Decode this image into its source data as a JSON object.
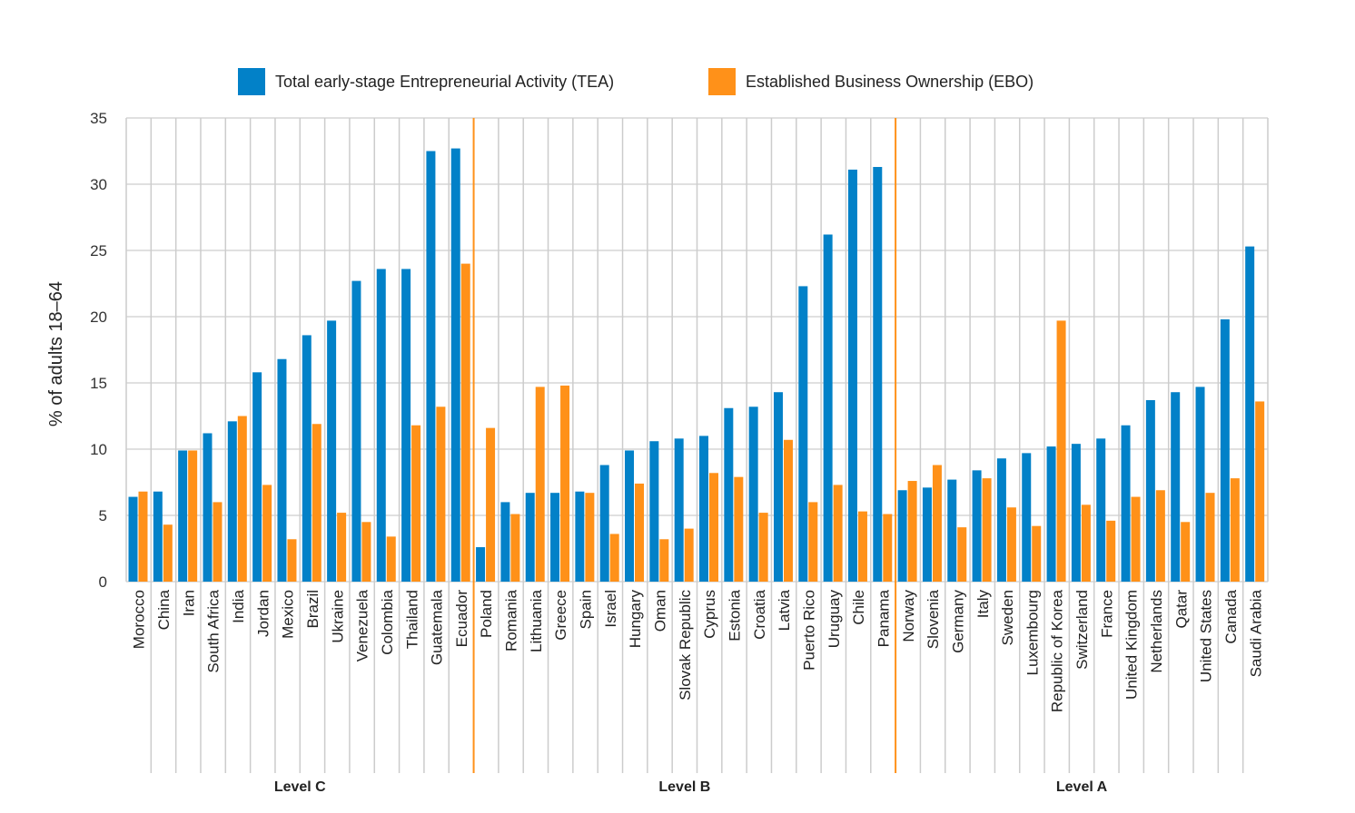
{
  "chart_data": {
    "type": "bar",
    "title": "",
    "xlabel": "",
    "ylabel": "% of adults 18–64",
    "ylim": [
      0,
      35
    ],
    "yticks": [
      0,
      5,
      10,
      15,
      20,
      25,
      30,
      35
    ],
    "grid": true,
    "legend_position": "top",
    "colors": {
      "TEA": "#0281c8",
      "EBO": "#ff9119",
      "level_divider": "#ff9119"
    },
    "categories": [
      "Morocco",
      "China",
      "Iran",
      "South Africa",
      "India",
      "Jordan",
      "Mexico",
      "Brazil",
      "Ukraine",
      "Venezuela",
      "Colombia",
      "Thailand",
      "Guatemala",
      "Ecuador",
      "Poland",
      "Romania",
      "Lithuania",
      "Greece",
      "Spain",
      "Israel",
      "Hungary",
      "Oman",
      "Slovak Republic",
      "Cyprus",
      "Estonia",
      "Croatia",
      "Latvia",
      "Puerto Rico",
      "Uruguay",
      "Chile",
      "Panama",
      "Norway",
      "Slovenia",
      "Germany",
      "Italy",
      "Sweden",
      "Luxembourg",
      "Republic of Korea",
      "Switzerland",
      "France",
      "United Kingdom",
      "Netherlands",
      "Qatar",
      "United States",
      "Canada",
      "Saudi Arabia"
    ],
    "groups": [
      {
        "label": "Level C",
        "count": 14
      },
      {
        "label": "Level B",
        "count": 17
      },
      {
        "label": "Level A",
        "count": 15
      }
    ],
    "series": [
      {
        "name": "Total early-stage Entrepreneurial Activity (TEA)",
        "key": "TEA",
        "values": [
          6.4,
          6.8,
          9.9,
          11.2,
          12.1,
          15.8,
          16.8,
          18.6,
          19.7,
          22.7,
          23.6,
          23.6,
          32.5,
          32.7,
          2.6,
          6.0,
          6.7,
          6.7,
          6.8,
          8.8,
          9.9,
          10.6,
          10.8,
          11.0,
          13.1,
          13.2,
          14.3,
          22.3,
          26.2,
          31.1,
          31.3,
          6.9,
          7.1,
          7.7,
          8.4,
          9.3,
          9.7,
          10.2,
          10.4,
          10.8,
          11.8,
          13.7,
          14.3,
          14.7,
          19.8,
          25.3
        ]
      },
      {
        "name": "Established Business Ownership (EBO)",
        "key": "EBO",
        "values": [
          6.8,
          4.3,
          9.9,
          6.0,
          12.5,
          7.3,
          3.2,
          11.9,
          5.2,
          4.5,
          3.4,
          11.8,
          13.2,
          24.0,
          11.6,
          5.1,
          14.7,
          14.8,
          6.7,
          3.6,
          7.4,
          3.2,
          4.0,
          8.2,
          7.9,
          5.2,
          10.7,
          6.0,
          7.3,
          5.3,
          5.1,
          7.6,
          8.8,
          4.1,
          7.8,
          5.6,
          4.2,
          19.7,
          5.8,
          4.6,
          6.4,
          6.9,
          4.5,
          6.7,
          7.8,
          13.6
        ]
      }
    ]
  }
}
